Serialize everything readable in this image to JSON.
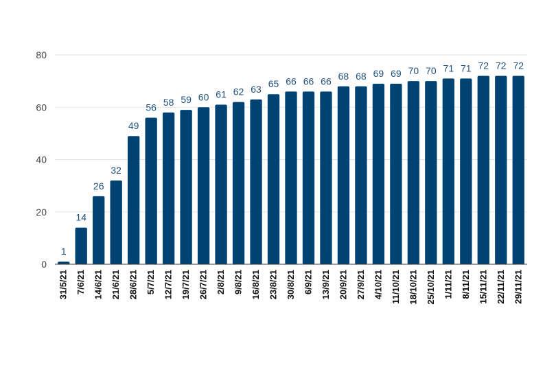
{
  "chart_data": {
    "type": "bar",
    "title": "",
    "xlabel": "",
    "ylabel": "",
    "categories": [
      "31/5/21",
      "7/6/21",
      "14/6/21",
      "21/6/21",
      "28/6/21",
      "5/7/21",
      "12/7/21",
      "19/7/21",
      "26/7/21",
      "2/8/21",
      "9/8/21",
      "16/8/21",
      "23/8/21",
      "30/8/21",
      "6/9/21",
      "13/9/21",
      "20/9/21",
      "27/9/21",
      "4/10/21",
      "11/10/21",
      "18/10/21",
      "25/10/21",
      "1/11/21",
      "8/11/21",
      "15/11/21",
      "22/11/21",
      "29/11/21"
    ],
    "values": [
      1,
      14,
      26,
      32,
      49,
      56,
      58,
      59,
      60,
      61,
      62,
      63,
      65,
      66,
      66,
      66,
      68,
      68,
      69,
      69,
      70,
      70,
      71,
      71,
      72,
      72,
      72
    ],
    "ylim": [
      0,
      80
    ],
    "yticks": [
      0,
      20,
      40,
      60,
      80
    ],
    "grid": true,
    "legend": "none",
    "bar_color": "#004373",
    "label_color": "#1f4f7a"
  }
}
